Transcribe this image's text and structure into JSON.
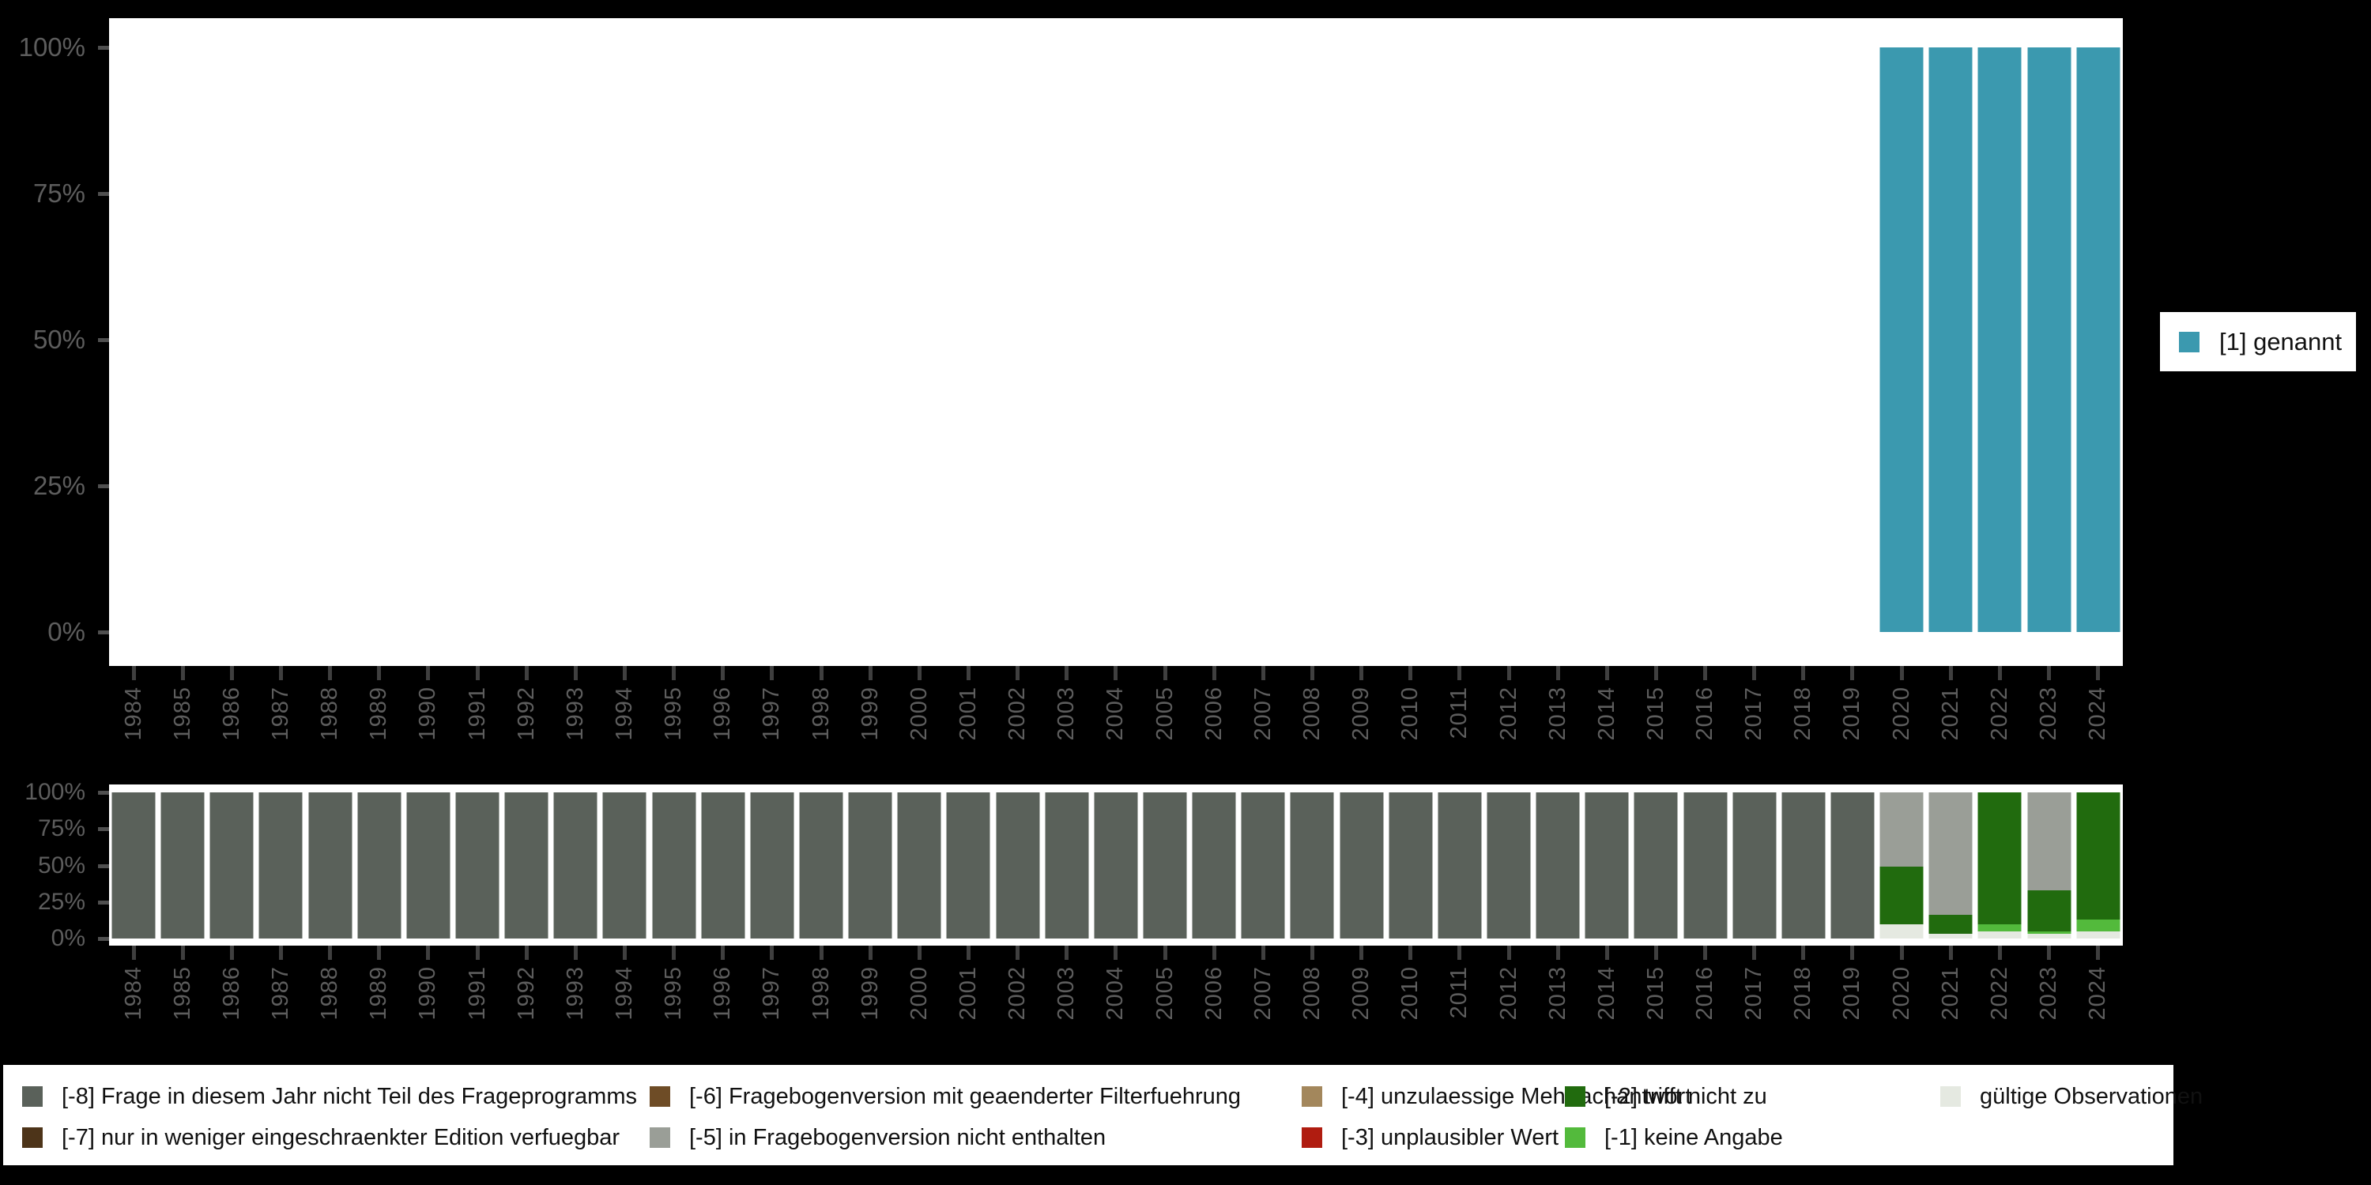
{
  "canvas": {
    "background": "#000000",
    "panel_background": "#ffffff",
    "axis_text_color": "#5d5d5d",
    "tick_color": "#3f3f3f"
  },
  "top_legend": {
    "label": "[1] genannt",
    "color": "#3b99af"
  },
  "chart_data": [
    {
      "type": "bar",
      "stacked": true,
      "title": "",
      "xlabel": "",
      "ylabel": "",
      "ylim": [
        0,
        100
      ],
      "grid": false,
      "legend_position": "right",
      "yticks": [
        {
          "value": 0,
          "label": "0%"
        },
        {
          "value": 25,
          "label": "25%"
        },
        {
          "value": 50,
          "label": "50%"
        },
        {
          "value": 75,
          "label": "75%"
        },
        {
          "value": 100,
          "label": "100%"
        }
      ],
      "categories": [
        "1984",
        "1985",
        "1986",
        "1987",
        "1988",
        "1989",
        "1990",
        "1991",
        "1992",
        "1993",
        "1994",
        "1995",
        "1996",
        "1997",
        "1998",
        "1999",
        "2000",
        "2001",
        "2002",
        "2003",
        "2004",
        "2005",
        "2006",
        "2007",
        "2008",
        "2009",
        "2010",
        "2011",
        "2012",
        "2013",
        "2014",
        "2015",
        "2016",
        "2017",
        "2018",
        "2019",
        "2020",
        "2021",
        "2022",
        "2023",
        "2024"
      ],
      "series": [
        {
          "name": "[1] genannt",
          "color": "#3b99af",
          "values": [
            0,
            0,
            0,
            0,
            0,
            0,
            0,
            0,
            0,
            0,
            0,
            0,
            0,
            0,
            0,
            0,
            0,
            0,
            0,
            0,
            0,
            0,
            0,
            0,
            0,
            0,
            0,
            0,
            0,
            0,
            0,
            0,
            0,
            0,
            0,
            0,
            100,
            100,
            100,
            100,
            100
          ]
        }
      ]
    },
    {
      "type": "bar",
      "stacked": true,
      "title": "",
      "xlabel": "",
      "ylabel": "",
      "ylim": [
        0,
        100
      ],
      "grid": false,
      "legend_position": "bottom",
      "yticks": [
        {
          "value": 0,
          "label": "0%"
        },
        {
          "value": 25,
          "label": "25%"
        },
        {
          "value": 50,
          "label": "50%"
        },
        {
          "value": 75,
          "label": "75%"
        },
        {
          "value": 100,
          "label": "100%"
        }
      ],
      "categories": [
        "1984",
        "1985",
        "1986",
        "1987",
        "1988",
        "1989",
        "1990",
        "1991",
        "1992",
        "1993",
        "1994",
        "1995",
        "1996",
        "1997",
        "1998",
        "1999",
        "2000",
        "2001",
        "2002",
        "2003",
        "2004",
        "2005",
        "2006",
        "2007",
        "2008",
        "2009",
        "2010",
        "2011",
        "2012",
        "2013",
        "2014",
        "2015",
        "2016",
        "2017",
        "2018",
        "2019",
        "2020",
        "2021",
        "2022",
        "2023",
        "2024"
      ],
      "series": [
        {
          "name": "gültige Observationen",
          "color": "#e5e9e1",
          "values": [
            0,
            0,
            0,
            0,
            0,
            0,
            0,
            0,
            0,
            0,
            0,
            0,
            0,
            0,
            0,
            0,
            0,
            0,
            0,
            0,
            0,
            0,
            0,
            0,
            0,
            0,
            0,
            0,
            0,
            0,
            0,
            0,
            0,
            0,
            0,
            0,
            10,
            3,
            5,
            3,
            5
          ]
        },
        {
          "name": "[-1] keine Angabe",
          "color": "#53ba3c",
          "values": [
            0,
            0,
            0,
            0,
            0,
            0,
            0,
            0,
            0,
            0,
            0,
            0,
            0,
            0,
            0,
            0,
            0,
            0,
            0,
            0,
            0,
            0,
            0,
            0,
            0,
            0,
            0,
            0,
            0,
            0,
            0,
            0,
            0,
            0,
            0,
            0,
            0,
            0,
            5,
            2,
            8
          ]
        },
        {
          "name": "[-2] trifft nicht zu",
          "color": "#216b0e",
          "values": [
            0,
            0,
            0,
            0,
            0,
            0,
            0,
            0,
            0,
            0,
            0,
            0,
            0,
            0,
            0,
            0,
            0,
            0,
            0,
            0,
            0,
            0,
            0,
            0,
            0,
            0,
            0,
            0,
            0,
            0,
            0,
            0,
            0,
            0,
            0,
            0,
            39,
            13,
            90,
            28,
            87
          ]
        },
        {
          "name": "[-5] in Fragebogenversion nicht enthalten",
          "color": "#9a9e97",
          "values": [
            0,
            0,
            0,
            0,
            0,
            0,
            0,
            0,
            0,
            0,
            0,
            0,
            0,
            0,
            0,
            0,
            0,
            0,
            0,
            0,
            0,
            0,
            0,
            0,
            0,
            0,
            0,
            0,
            0,
            0,
            0,
            0,
            0,
            0,
            0,
            0,
            51,
            84,
            0,
            67,
            0
          ]
        },
        {
          "name": "[-8] Frage in diesem Jahr nicht Teil des Frageprogramms",
          "color": "#5a615a",
          "values": [
            100,
            100,
            100,
            100,
            100,
            100,
            100,
            100,
            100,
            100,
            100,
            100,
            100,
            100,
            100,
            100,
            100,
            100,
            100,
            100,
            100,
            100,
            100,
            100,
            100,
            100,
            100,
            100,
            100,
            100,
            100,
            100,
            100,
            100,
            100,
            100,
            0,
            0,
            0,
            0,
            0
          ]
        }
      ]
    }
  ],
  "missing_legend": {
    "columns": [
      [
        {
          "label": "[-8] Frage in diesem Jahr nicht Teil des Frageprogramms",
          "color": "#5a615a"
        },
        {
          "label": "[-7] nur in weniger eingeschraenkter Edition verfuegbar",
          "color": "#4d3419"
        }
      ],
      [
        {
          "label": "[-6] Fragebogenversion mit geaenderter Filterfuehrung",
          "color": "#6e4c26"
        },
        {
          "label": "[-5] in Fragebogenversion nicht enthalten",
          "color": "#9a9e97"
        }
      ],
      [
        {
          "label": "[-4] unzulaessige Mehrfachantwort",
          "color": "#a3875c"
        },
        {
          "label": "[-3] unplausibler Wert",
          "color": "#b01c10"
        }
      ],
      [
        {
          "label": "[-2] trifft nicht zu",
          "color": "#216b0e"
        },
        {
          "label": "[-1] keine Angabe",
          "color": "#53ba3c"
        }
      ],
      [
        {
          "label": "gültige Observationen",
          "color": "#e5e9e1"
        }
      ]
    ]
  }
}
